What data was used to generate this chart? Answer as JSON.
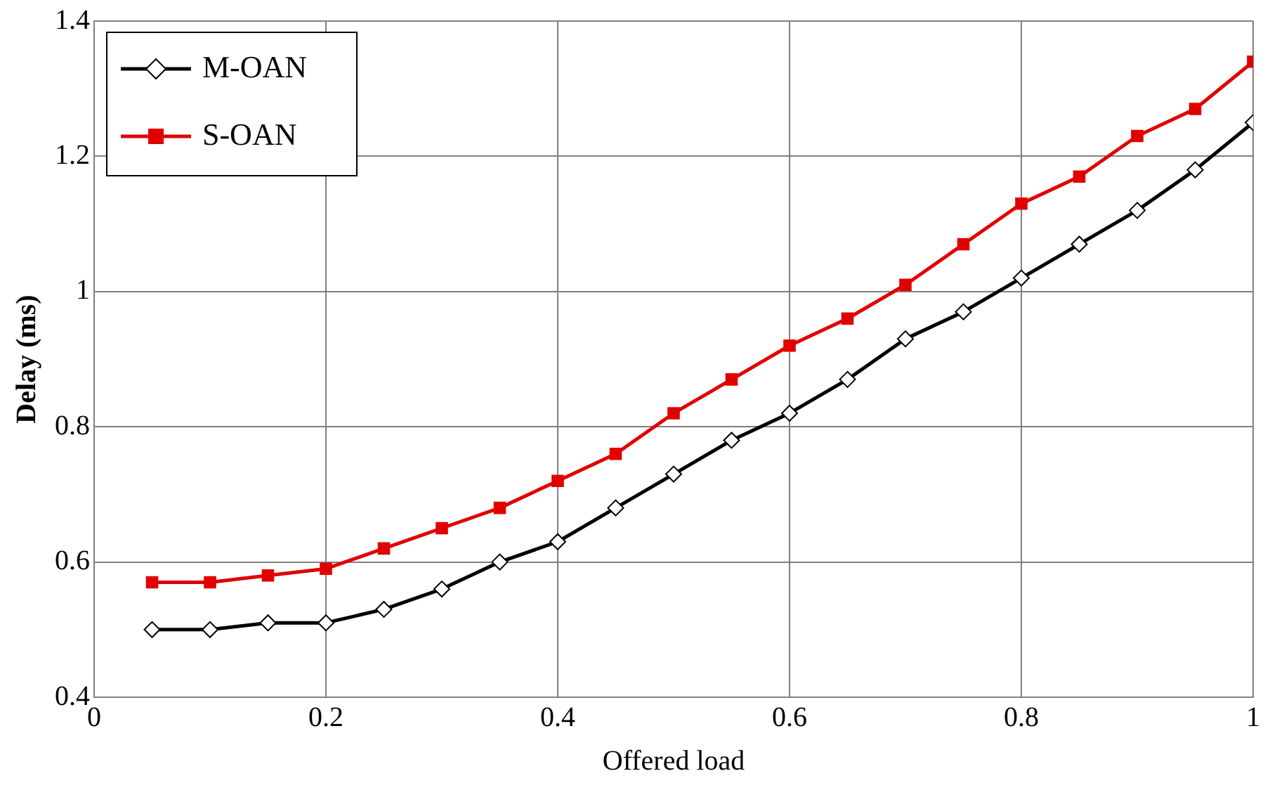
{
  "chart_data": {
    "type": "line",
    "xlabel": "Offered load",
    "ylabel": "Delay (ms)",
    "x": [
      0.05,
      0.1,
      0.15,
      0.2,
      0.25,
      0.3,
      0.35,
      0.4,
      0.45,
      0.5,
      0.55,
      0.6,
      0.65,
      0.7,
      0.75,
      0.8,
      0.85,
      0.9,
      0.95,
      1.0
    ],
    "series": [
      {
        "name": "M-OAN",
        "color": "#000000",
        "marker": "diamond",
        "values": [
          0.5,
          0.5,
          0.51,
          0.51,
          0.53,
          0.56,
          0.6,
          0.63,
          0.68,
          0.73,
          0.78,
          0.82,
          0.87,
          0.93,
          0.97,
          1.02,
          1.07,
          1.12,
          1.18,
          1.25
        ]
      },
      {
        "name": "S-OAN",
        "color": "#e00000",
        "marker": "square",
        "values": [
          0.57,
          0.57,
          0.58,
          0.59,
          0.62,
          0.65,
          0.68,
          0.72,
          0.76,
          0.82,
          0.87,
          0.92,
          0.96,
          1.01,
          1.07,
          1.13,
          1.17,
          1.23,
          1.27,
          1.34
        ]
      }
    ],
    "xlim": [
      0,
      1
    ],
    "xticks": [
      0,
      0.2,
      0.4,
      0.6,
      0.8,
      1
    ],
    "ylim": [
      0.4,
      1.4
    ],
    "yticks": [
      0.4,
      0.6,
      0.8,
      1,
      1.2,
      1.4
    ],
    "grid": true,
    "legend": "top left",
    "line_style": "solid"
  }
}
